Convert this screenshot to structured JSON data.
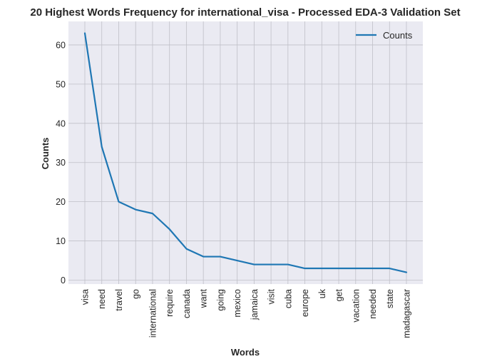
{
  "chart_data": {
    "type": "line",
    "title": "20 Highest Words Frequency for international_visa - Processed EDA-3 Validation Set",
    "xlabel": "Words",
    "ylabel": "Counts",
    "categories": [
      "visa",
      "need",
      "travel",
      "go",
      "international",
      "require",
      "canada",
      "want",
      "going",
      "mexico",
      "jamaica",
      "visit",
      "cuba",
      "europe",
      "uk",
      "get",
      "vacation",
      "needed",
      "state",
      "madagascar"
    ],
    "series": [
      {
        "name": "Counts",
        "color": "#1f77b4",
        "values": [
          63,
          34,
          20,
          18,
          17,
          13,
          8,
          6,
          6,
          5,
          4,
          4,
          4,
          3,
          3,
          3,
          3,
          3,
          3,
          2
        ]
      }
    ],
    "ylim": [
      -1,
      66
    ],
    "yticks": [
      0,
      10,
      20,
      30,
      40,
      50,
      60
    ],
    "grid": true,
    "legend_position": "top-right",
    "colors": {
      "plot_bg": "#eaeaf2",
      "grid": "#c0c0c8",
      "text": "#262626"
    }
  }
}
